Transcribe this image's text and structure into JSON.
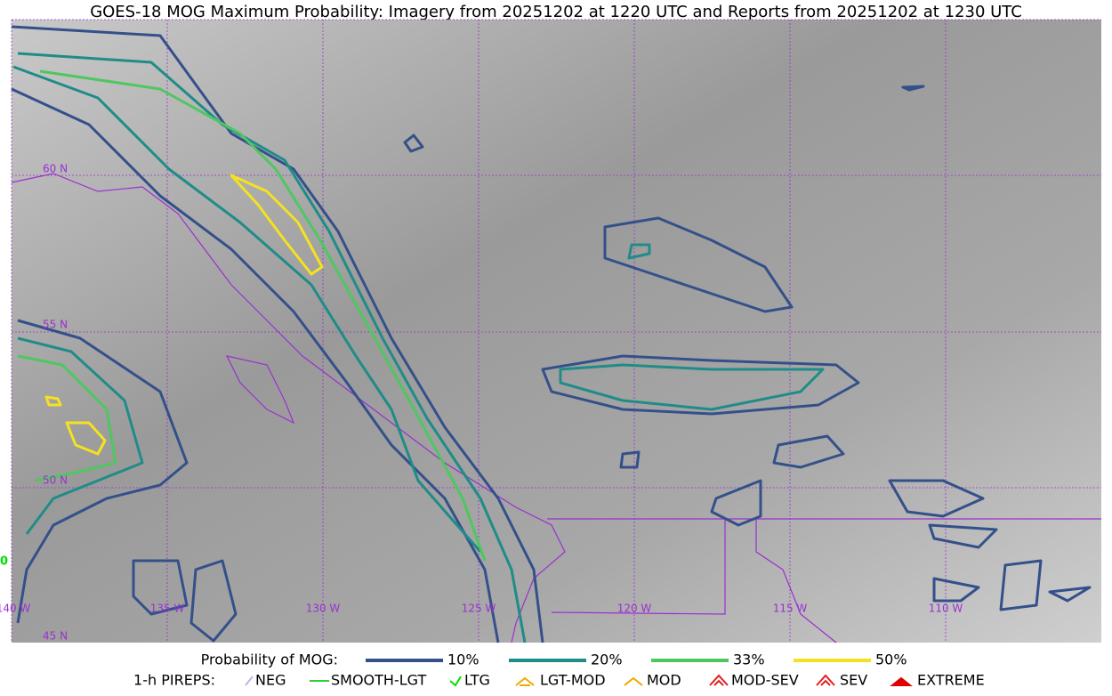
{
  "title": "GOES-18 MOG Maximum Probability: Imagery from 20251202 at 1220 UTC and Reports from 20251202 at 1230 UTC",
  "map": {
    "lat_labels": [
      "60 N",
      "55 N",
      "50 N",
      "45 N"
    ],
    "lon_labels": [
      "140 W",
      "135 W",
      "130 W",
      "125 W",
      "120 W",
      "115 W",
      "110 W"
    ],
    "report_label": "0"
  },
  "legend": {
    "probability": {
      "label": "Probability of MOG:",
      "items": [
        {
          "label": "10%",
          "color": "#34508a"
        },
        {
          "label": "20%",
          "color": "#1f8c88"
        },
        {
          "label": "33%",
          "color": "#4fc760"
        },
        {
          "label": "50%",
          "color": "#f5e21e"
        }
      ]
    },
    "pireps": {
      "label": "1-h PIREPS:",
      "items": [
        {
          "label": "NEG",
          "color": "#b8b8f0"
        },
        {
          "label": "SMOOTH-LGT",
          "color": "#32cd32"
        },
        {
          "label": "LTG",
          "color": "#00e000"
        },
        {
          "label": "LGT-MOD",
          "color": "#f0a800"
        },
        {
          "label": "MOD",
          "color": "#f0a800"
        },
        {
          "label": "MOD-SEV",
          "color": "#e02020"
        },
        {
          "label": "SEV",
          "color": "#e02020"
        },
        {
          "label": "EXTREME",
          "color": "#e00000"
        }
      ]
    }
  }
}
